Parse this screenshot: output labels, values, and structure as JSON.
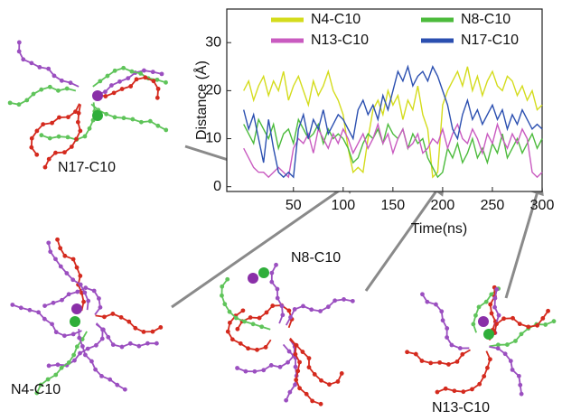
{
  "chart_data": {
    "type": "line",
    "xlabel": "Time(ns)",
    "ylabel": "Distance (Å)",
    "xlim": [
      -17,
      300
    ],
    "ylim": [
      -1,
      37
    ],
    "xticks": [
      50,
      100,
      150,
      200,
      250,
      300
    ],
    "yticks": [
      0,
      10,
      20,
      30
    ],
    "x": [
      0,
      5,
      10,
      15,
      20,
      25,
      30,
      35,
      40,
      45,
      50,
      55,
      60,
      65,
      70,
      75,
      80,
      85,
      90,
      95,
      100,
      105,
      110,
      115,
      120,
      125,
      130,
      135,
      140,
      145,
      150,
      155,
      160,
      165,
      170,
      175,
      180,
      185,
      190,
      195,
      200,
      205,
      210,
      215,
      220,
      225,
      230,
      235,
      240,
      245,
      250,
      255,
      260,
      265,
      270,
      275,
      280,
      285,
      290,
      295,
      300
    ],
    "series": [
      {
        "name": "N4-C10",
        "color": "#d4dc1c",
        "values": [
          20,
          22,
          18,
          21,
          23,
          19,
          22,
          20,
          24,
          18,
          21,
          23,
          20,
          17,
          22,
          19,
          21,
          24,
          20,
          18,
          15,
          8,
          3,
          4,
          3,
          10,
          16,
          18,
          15,
          20,
          17,
          19,
          14,
          18,
          16,
          21,
          15,
          12,
          2,
          3,
          17,
          20,
          22,
          24,
          21,
          25,
          20,
          23,
          19,
          22,
          24,
          21,
          20,
          23,
          22,
          19,
          21,
          18,
          20,
          16,
          17
        ]
      },
      {
        "name": "N8-C10",
        "color": "#4cbb3c",
        "values": [
          13,
          11,
          9,
          14,
          12,
          10,
          13,
          8,
          11,
          12,
          9,
          14,
          12,
          10,
          11,
          13,
          9,
          12,
          10,
          11,
          10,
          8,
          5,
          6,
          9,
          11,
          10,
          12,
          9,
          13,
          11,
          10,
          12,
          8,
          11,
          9,
          10,
          6,
          4,
          2,
          3,
          8,
          6,
          9,
          5,
          7,
          10,
          6,
          8,
          5,
          9,
          7,
          11,
          6,
          8,
          10,
          7,
          9,
          11,
          8,
          10
        ]
      },
      {
        "name": "N13-C10",
        "color": "#c95bc0",
        "values": [
          8,
          6,
          4,
          3,
          3,
          2,
          3,
          4,
          3,
          2,
          8,
          10,
          9,
          11,
          7,
          12,
          10,
          8,
          11,
          9,
          12,
          10,
          7,
          9,
          11,
          8,
          10,
          13,
          9,
          11,
          7,
          10,
          12,
          8,
          9,
          11,
          7,
          8,
          10,
          9,
          12,
          8,
          11,
          13,
          10,
          9,
          12,
          10,
          7,
          11,
          9,
          13,
          10,
          8,
          11,
          9,
          12,
          10,
          3,
          2,
          3
        ]
      },
      {
        "name": "N17-C10",
        "color": "#2b4fb0",
        "values": [
          16,
          12,
          15,
          10,
          5,
          14,
          8,
          3,
          2,
          3,
          2,
          12,
          15,
          10,
          14,
          12,
          16,
          11,
          13,
          15,
          14,
          12,
          10,
          16,
          18,
          15,
          17,
          14,
          19,
          16,
          20,
          24,
          22,
          25,
          21,
          23,
          24,
          22,
          25,
          23,
          20,
          17,
          12,
          10,
          15,
          18,
          14,
          16,
          13,
          15,
          17,
          14,
          16,
          12,
          15,
          13,
          16,
          14,
          12,
          13,
          12
        ]
      }
    ],
    "annotations": [
      "N17-C10",
      "N4-C10",
      "N8-C10",
      "N13-C10"
    ]
  }
}
